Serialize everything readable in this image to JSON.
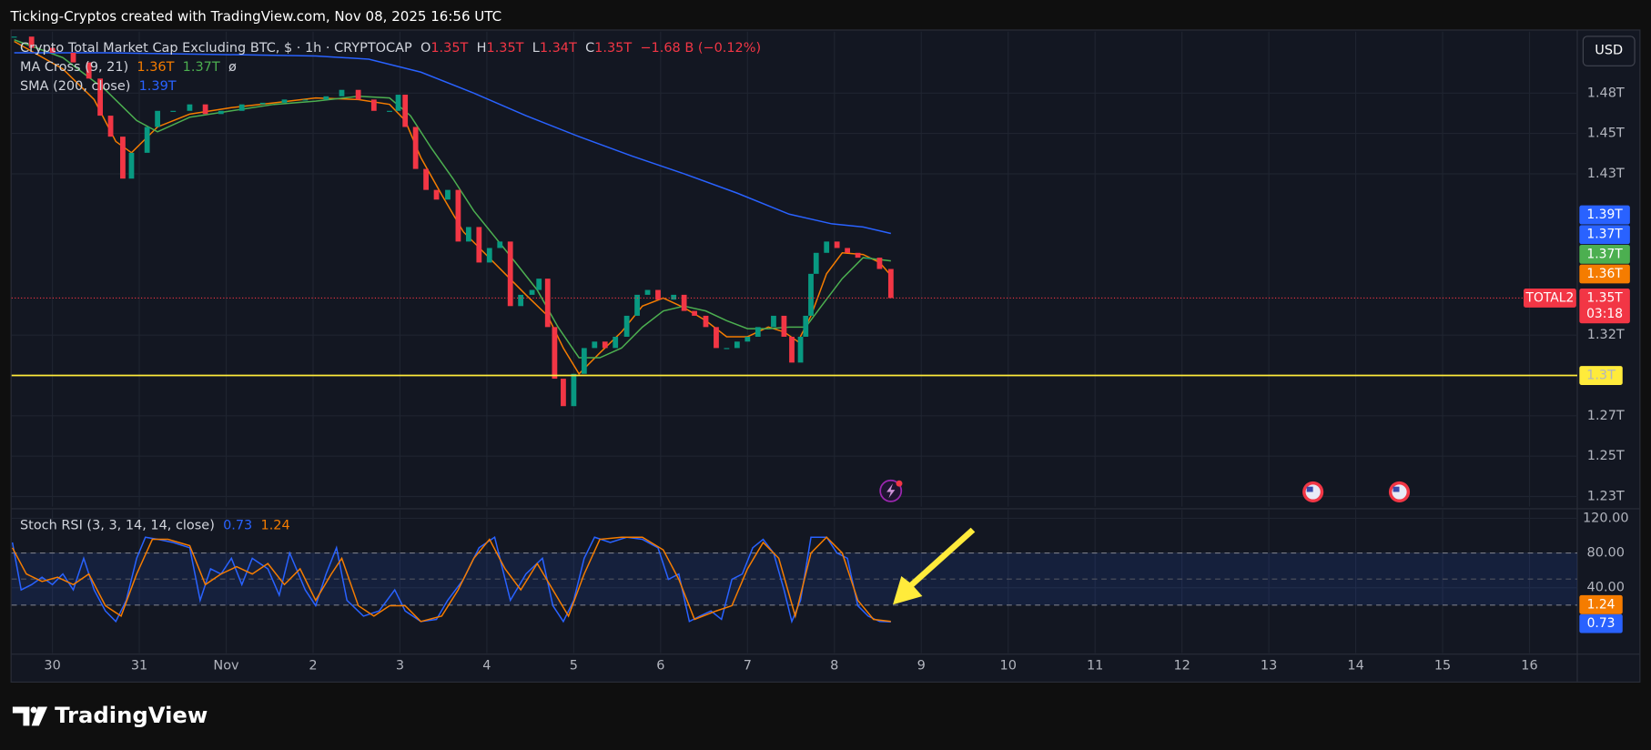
{
  "header": {
    "text": "Ticking-Cryptos created with TradingView.com, Nov 08, 2025 16:56 UTC"
  },
  "toolbar": {
    "currency": "USD"
  },
  "footer": {
    "brand": "TradingView"
  },
  "chart_data": [
    {
      "type": "candlestick",
      "title": "Crypto Total Market Cap Excluding BTC, $ · 1h · CRYPTOCAP",
      "ohlc": [
        {
          "key": "O",
          "value": "1.35T"
        },
        {
          "key": "H",
          "value": "1.35T"
        },
        {
          "key": "L",
          "value": "1.34T"
        },
        {
          "key": "C",
          "value": "1.35T"
        }
      ],
      "change": "−1.68 B (−0.12%)",
      "up_color": "#089981",
      "down_color": "#f23645",
      "x": [
        -0.44,
        -0.24,
        0,
        0.24,
        0.42,
        0.55,
        0.67,
        0.81,
        0.91,
        1.09,
        1.21,
        1.39,
        1.58,
        1.76,
        1.94,
        2.18,
        2.42,
        2.67,
        2.91,
        3.15,
        3.33,
        3.52,
        3.7,
        3.88,
        3.98,
        4.06,
        4.18,
        4.3,
        4.42,
        4.55,
        4.67,
        4.79,
        4.91,
        5.03,
        5.15,
        5.27,
        5.39,
        5.52,
        5.6,
        5.7,
        5.78,
        5.88,
        6.0,
        6.12,
        6.24,
        6.36,
        6.48,
        6.61,
        6.73,
        6.85,
        6.97,
        7.15,
        7.27,
        7.39,
        7.52,
        7.64,
        7.76,
        7.88,
        8.0,
        8.12,
        8.3,
        8.42,
        8.51,
        8.61,
        8.67,
        8.73,
        8.79,
        8.91,
        9.03,
        9.15,
        9.27,
        9.39,
        9.52,
        9.65
      ],
      "values": [
        1.51,
        1.503,
        1.5,
        1.494,
        1.484,
        1.461,
        1.448,
        1.422,
        1.438,
        1.454,
        1.464,
        1.464,
        1.468,
        1.462,
        1.464,
        1.468,
        1.469,
        1.471,
        1.471,
        1.473,
        1.477,
        1.471,
        1.464,
        1.464,
        1.474,
        1.454,
        1.428,
        1.415,
        1.409,
        1.415,
        1.383,
        1.392,
        1.37,
        1.379,
        1.383,
        1.343,
        1.35,
        1.353,
        1.36,
        1.33,
        1.298,
        1.281,
        1.301,
        1.317,
        1.321,
        1.317,
        1.324,
        1.337,
        1.35,
        1.353,
        1.347,
        1.35,
        1.34,
        1.337,
        1.33,
        1.317,
        1.317,
        1.321,
        1.324,
        1.33,
        1.337,
        1.324,
        1.308,
        1.324,
        1.337,
        1.363,
        1.376,
        1.383,
        1.379,
        1.376,
        1.373,
        1.373,
        1.366,
        1.348
      ],
      "series": [
        {
          "name": "MA Cross (9, 21)",
          "legend_value": "1.36T",
          "color": "#f57c00",
          "x": [
            -0.44,
            0.12,
            0.48,
            0.73,
            0.91,
            1.21,
            1.58,
            2.06,
            2.55,
            3.03,
            3.52,
            3.88,
            4.06,
            4.24,
            4.48,
            4.73,
            4.97,
            5.21,
            5.45,
            5.7,
            5.88,
            6.06,
            6.3,
            6.55,
            6.79,
            7.03,
            7.27,
            7.52,
            7.76,
            8.0,
            8.24,
            8.42,
            8.58,
            8.73,
            8.91,
            9.09,
            9.33,
            9.52,
            9.65
          ],
          "values": [
            1.507,
            1.49,
            1.471,
            1.445,
            1.438,
            1.454,
            1.462,
            1.466,
            1.469,
            1.472,
            1.471,
            1.468,
            1.458,
            1.435,
            1.412,
            1.389,
            1.376,
            1.363,
            1.35,
            1.337,
            1.317,
            1.301,
            1.314,
            1.327,
            1.343,
            1.348,
            1.342,
            1.334,
            1.324,
            1.324,
            1.33,
            1.327,
            1.321,
            1.337,
            1.363,
            1.376,
            1.375,
            1.37,
            1.362
          ]
        },
        {
          "legend_value": "1.37T",
          "legend_note": "ø",
          "color": "#4caf50",
          "x": [
            -0.44,
            0.12,
            0.61,
            0.97,
            1.21,
            1.58,
            2.06,
            2.55,
            3.03,
            3.52,
            3.88,
            4.12,
            4.36,
            4.61,
            4.85,
            5.09,
            5.33,
            5.58,
            5.82,
            6.06,
            6.3,
            6.55,
            6.79,
            7.03,
            7.27,
            7.52,
            7.76,
            8.0,
            8.24,
            8.48,
            8.67,
            8.85,
            9.09,
            9.33,
            9.65
          ],
          "values": [
            1.508,
            1.497,
            1.477,
            1.458,
            1.451,
            1.46,
            1.464,
            1.468,
            1.47,
            1.473,
            1.472,
            1.461,
            1.441,
            1.422,
            1.402,
            1.386,
            1.37,
            1.353,
            1.33,
            1.311,
            1.311,
            1.317,
            1.33,
            1.34,
            1.343,
            1.34,
            1.334,
            1.329,
            1.329,
            1.33,
            1.33,
            1.343,
            1.36,
            1.373,
            1.371
          ]
        },
        {
          "name": "SMA (200, close)",
          "legend_value": "1.39T",
          "color": "#2962ff",
          "x": [
            -0.44,
            0.61,
            1.82,
            3.03,
            3.64,
            4.24,
            4.85,
            5.45,
            6.06,
            6.67,
            7.27,
            7.88,
            8.48,
            8.97,
            9.33,
            9.65
          ],
          "values": [
            1.5,
            1.5,
            1.499,
            1.498,
            1.496,
            1.488,
            1.475,
            1.461,
            1.448,
            1.436,
            1.425,
            1.413,
            1.4,
            1.394,
            1.392,
            1.388
          ]
        }
      ],
      "xlim": [
        -0.47,
        17.55
      ],
      "xticks": [
        {
          "value": 0,
          "label": "30"
        },
        {
          "value": 1,
          "label": "31"
        },
        {
          "value": 2,
          "label": "Nov"
        },
        {
          "value": 3,
          "label": "2"
        },
        {
          "value": 4,
          "label": "3"
        },
        {
          "value": 5,
          "label": "4"
        },
        {
          "value": 6,
          "label": "5"
        },
        {
          "value": 7,
          "label": "6"
        },
        {
          "value": 8,
          "label": "7"
        },
        {
          "value": 9,
          "label": "8"
        },
        {
          "value": 10,
          "label": "9"
        },
        {
          "value": 11,
          "label": "10"
        },
        {
          "value": 12,
          "label": "11"
        },
        {
          "value": 13,
          "label": "12"
        },
        {
          "value": 14,
          "label": "13"
        },
        {
          "value": 15,
          "label": "14"
        },
        {
          "value": 16,
          "label": "15"
        },
        {
          "value": 17,
          "label": "16"
        }
      ],
      "ylim": [
        1.2187,
        1.5131
      ],
      "yticks": [
        {
          "value": 1.475,
          "label": "1.48T"
        },
        {
          "value": 1.45,
          "label": "1.45T"
        },
        {
          "value": 1.425,
          "label": "1.43T"
        },
        {
          "value": 1.325,
          "label": "1.32T"
        },
        {
          "value": 1.275,
          "label": "1.27T"
        },
        {
          "value": 1.25,
          "label": "1.25T"
        },
        {
          "value": 1.225,
          "label": "1.23T"
        }
      ],
      "grid": true,
      "hline": {
        "value": 1.3,
        "label": "1.3T",
        "color": "#ffeb3b"
      },
      "axis_badges": [
        {
          "label": "1.39T",
          "color": "#2962ff"
        },
        {
          "label": "1.37T",
          "color": "#2962ff"
        },
        {
          "label": "1.37T",
          "color": "#4caf50"
        },
        {
          "label": "1.36T",
          "color": "#f57c00"
        }
      ],
      "last_price": {
        "name": "TOTAL2",
        "label": "1.35T",
        "countdown": "03:18",
        "color": "#f23645"
      }
    },
    {
      "type": "line",
      "title": "Stoch RSI (3, 3, 14, 14, close)",
      "series": [
        {
          "color": "#2962ff",
          "x": [
            -0.46,
            -0.36,
            -0.24,
            -0.12,
            0,
            0.12,
            0.24,
            0.36,
            0.48,
            0.61,
            0.73,
            0.85,
            0.97,
            1.07,
            1.21,
            1.39,
            1.58,
            1.7,
            1.82,
            1.94,
            2.06,
            2.18,
            2.3,
            2.48,
            2.61,
            2.73,
            2.91,
            3.03,
            3.15,
            3.27,
            3.39,
            3.58,
            3.76,
            3.94,
            4.06,
            4.24,
            4.42,
            4.55,
            4.73,
            4.91,
            5.09,
            5.27,
            5.45,
            5.64,
            5.76,
            5.88,
            6.0,
            6.12,
            6.24,
            6.42,
            6.61,
            6.79,
            6.97,
            7.09,
            7.21,
            7.33,
            7.45,
            7.58,
            7.7,
            7.82,
            7.94,
            8.06,
            8.18,
            8.3,
            8.42,
            8.51,
            8.61,
            8.73,
            8.91,
            9.03,
            9.15,
            9.27,
            9.39,
            9.52,
            9.65
          ],
          "values": [
            92.1,
            37.6,
            43.6,
            52.1,
            43.6,
            55.8,
            37.6,
            73.9,
            37.6,
            13.3,
            1.2,
            25.5,
            73.9,
            98.2,
            95.8,
            92.1,
            86.1,
            25.5,
            61.8,
            55.8,
            73.9,
            43.6,
            73.9,
            61.8,
            31.5,
            80,
            37.6,
            19.4,
            55.8,
            86.1,
            25.5,
            7.3,
            13.3,
            37.6,
            13.3,
            1.2,
            3.6,
            25.5,
            49.7,
            86.1,
            98.2,
            25.5,
            55.8,
            73.9,
            19.4,
            1.2,
            25.5,
            73.9,
            98.2,
            92.1,
            98.2,
            95.8,
            86.1,
            49.7,
            55.8,
            1.2,
            7.3,
            13.3,
            3.6,
            49.7,
            55.8,
            86.1,
            95.8,
            80,
            37.6,
            1.2,
            25.5,
            98.2,
            98.2,
            80,
            73.9,
            19.4,
            7.3,
            1.2,
            0.73
          ]
        },
        {
          "color": "#f57c00",
          "x": [
            -0.46,
            -0.3,
            -0.12,
            0.06,
            0.24,
            0.42,
            0.61,
            0.79,
            0.97,
            1.15,
            1.33,
            1.58,
            1.76,
            1.94,
            2.12,
            2.3,
            2.48,
            2.67,
            2.85,
            3.03,
            3.21,
            3.33,
            3.52,
            3.7,
            3.88,
            4.06,
            4.24,
            4.48,
            4.67,
            4.85,
            5.03,
            5.21,
            5.39,
            5.58,
            5.76,
            5.94,
            6.12,
            6.3,
            6.55,
            6.79,
            7.03,
            7.21,
            7.39,
            7.64,
            7.82,
            8.0,
            8.18,
            8.36,
            8.55,
            8.73,
            8.91,
            9.09,
            9.27,
            9.45,
            9.65
          ],
          "values": [
            86.1,
            55.8,
            47.3,
            52.1,
            43.6,
            55.8,
            19.4,
            7.3,
            55.8,
            95.8,
            95.8,
            88.5,
            43.6,
            55.8,
            64.2,
            55.8,
            67.9,
            43.6,
            61.8,
            25.5,
            55.8,
            73.9,
            19.4,
            7.3,
            19.4,
            19.4,
            1.2,
            7.3,
            37.6,
            73.9,
            95.8,
            61.8,
            37.6,
            67.9,
            37.6,
            7.3,
            55.8,
            95.8,
            98.2,
            98.2,
            83.6,
            49.7,
            3.6,
            13.3,
            19.4,
            61.8,
            92.1,
            73.9,
            7.3,
            80,
            98.2,
            80,
            25.5,
            3.6,
            1.24
          ]
        }
      ],
      "ylim": [
        -35.2,
        129.7
      ],
      "yticks": [
        {
          "value": 120,
          "label": "120.00"
        },
        {
          "value": 80,
          "label": "80.00"
        },
        {
          "value": 40,
          "label": "40.00"
        }
      ],
      "band": [
        20,
        80
      ],
      "midline": 50
    }
  ]
}
